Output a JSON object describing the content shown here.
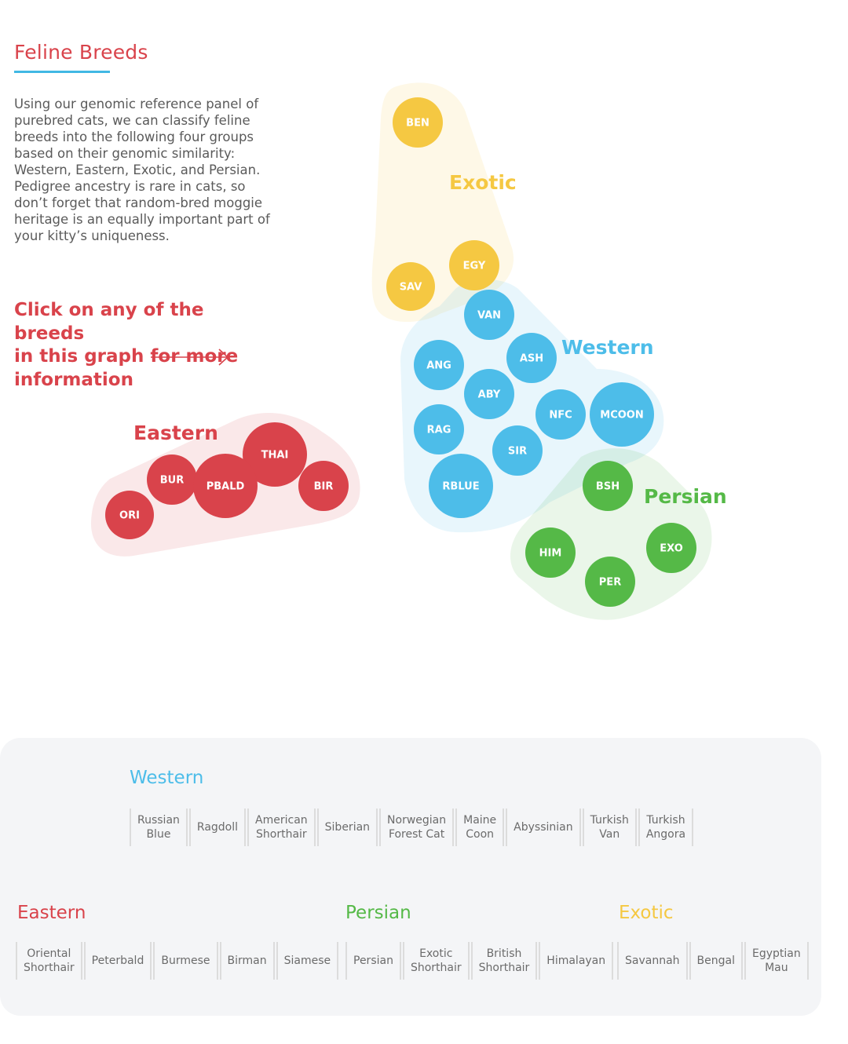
{
  "header": {
    "title": "Feline Breeds",
    "intro": "Using our genomic reference panel of purebred cats, we can classify feline breeds into the following four groups based on their genomic similarity: Western, Eastern, Exotic, and Persian. Pedigree ancestry is rare in cats, so don’t forget that random-bred moggie heritage is an equally important part of your kitty’s uniqueness.",
    "cta_lines": [
      "Click on any of the breeds",
      "in this graph for more",
      "information"
    ]
  },
  "colors": {
    "western": "#4dbde9",
    "eastern": "#d9434b",
    "exotic": "#f5c842",
    "persian": "#55b947"
  },
  "graph": {
    "groups": [
      {
        "key": "exotic",
        "label": "Exotic"
      },
      {
        "key": "western",
        "label": "Western"
      },
      {
        "key": "eastern",
        "label": "Eastern"
      },
      {
        "key": "persian",
        "label": "Persian"
      }
    ],
    "bubbles": [
      {
        "code": "BEN",
        "group": "exotic"
      },
      {
        "code": "EGY",
        "group": "exotic"
      },
      {
        "code": "SAV",
        "group": "exotic"
      },
      {
        "code": "VAN",
        "group": "western"
      },
      {
        "code": "ANG",
        "group": "western"
      },
      {
        "code": "ASH",
        "group": "western"
      },
      {
        "code": "ABY",
        "group": "western"
      },
      {
        "code": "NFC",
        "group": "western"
      },
      {
        "code": "MCOON",
        "group": "western"
      },
      {
        "code": "RAG",
        "group": "western"
      },
      {
        "code": "SIR",
        "group": "western"
      },
      {
        "code": "RBLUE",
        "group": "western"
      },
      {
        "code": "THAI",
        "group": "eastern"
      },
      {
        "code": "BUR",
        "group": "eastern"
      },
      {
        "code": "PBALD",
        "group": "eastern"
      },
      {
        "code": "BIR",
        "group": "eastern"
      },
      {
        "code": "ORI",
        "group": "eastern"
      },
      {
        "code": "BSH",
        "group": "persian"
      },
      {
        "code": "HIM",
        "group": "persian"
      },
      {
        "code": "EXO",
        "group": "persian"
      },
      {
        "code": "PER",
        "group": "persian"
      }
    ]
  },
  "legend": {
    "western": {
      "title": "Western",
      "breeds": [
        "Russian\nBlue",
        "Ragdoll",
        "American\nShorthair",
        "Siberian",
        "Norwegian\nForest Cat",
        "Maine\nCoon",
        "Abyssinian",
        "Turkish\nVan",
        "Turkish\nAngora"
      ]
    },
    "eastern": {
      "title": "Eastern",
      "breeds": [
        "Oriental\nShorthair",
        "Peterbald",
        "Burmese",
        "Birman",
        "Siamese"
      ]
    },
    "persian": {
      "title": "Persian",
      "breeds": [
        "Persian",
        "Exotic\nShorthair",
        "British\nShorthair",
        "Himalayan"
      ]
    },
    "exotic": {
      "title": "Exotic",
      "breeds": [
        "Savannah",
        "Bengal",
        "Egyptian\nMau"
      ]
    }
  }
}
